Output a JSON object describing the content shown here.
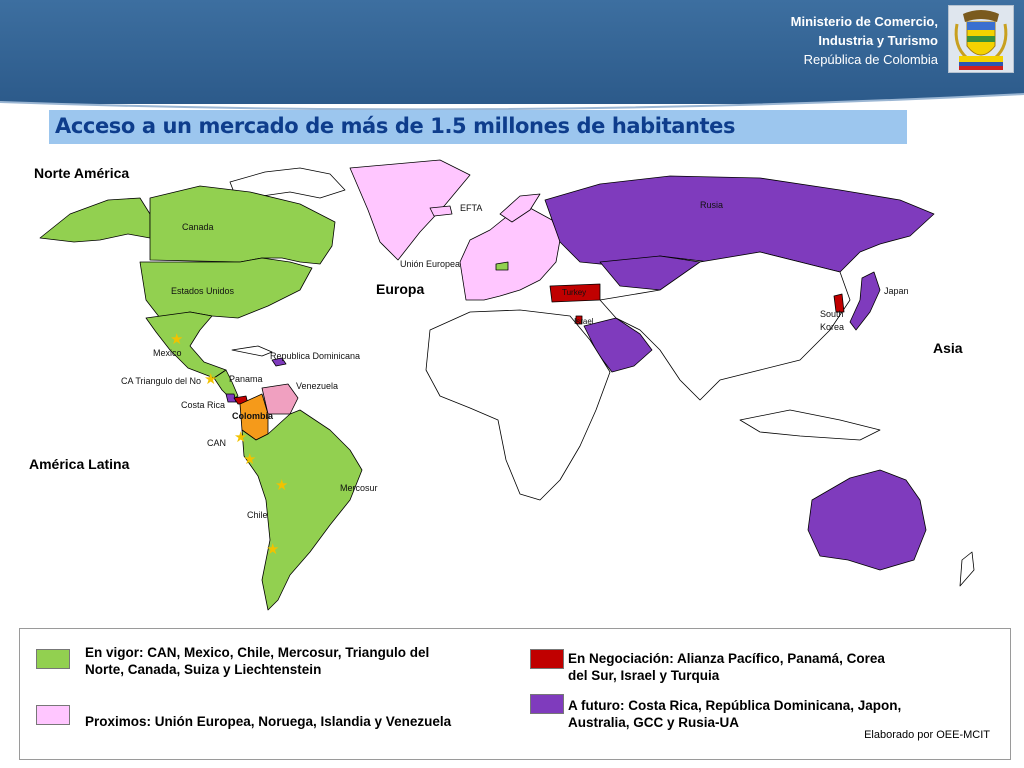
{
  "header": {
    "ministry_line1": "Ministerio de Comercio,",
    "ministry_line2": "Industria y Turismo",
    "ministry_line3": "República de Colombia",
    "crest_icon": "coat-of-arms-icon"
  },
  "title": "Acceso a un mercado de más de 1.5 millones de habitantes",
  "regions": {
    "north_america": "Norte América",
    "latin_america": "América Latina",
    "europe": "Europa",
    "asia": "Asia"
  },
  "map_labels": {
    "canada": "Canada",
    "usa": "Estados Unidos",
    "mexico": "Mexico",
    "dominican_republic": "Republica Dominicana",
    "ca_triangle": "CA Triangulo del No",
    "panama": "Panama",
    "venezuela": "Venezuela",
    "costa_rica": "Costa Rica",
    "colombia": "Colombia",
    "can": "CAN",
    "mercosur": "Mercosur",
    "chile": "Chile",
    "efta": "EFTA",
    "eu": "Unión Europea",
    "russia": "Rusia",
    "japan": "Japan",
    "south_korea_1": "South",
    "south_korea_2": "Korea",
    "turkey": "Turkey",
    "israel": "Israel"
  },
  "colors": {
    "in_force": "#92d050",
    "next": "#ffc6ff",
    "negotiation": "#c00000",
    "future": "#7f3bbd",
    "colombia": "#f59a1a",
    "venezuela": "#f0a0c0",
    "header": "#2c5a8a",
    "title_bg": "#9cc6ee",
    "title_text": "#0e3d8c"
  },
  "legend": {
    "in_force_1": "En vigor: CAN, Mexico, Chile, Mercosur, Triangulo del",
    "in_force_2": "Norte, Canada, Suiza y Liechtenstein",
    "next": "Proximos: Unión Europea, Noruega, Islandia y Venezuela",
    "negotiation_1": "En Negociación: Alianza Pacífico, Panamá, Corea",
    "negotiation_2": "del Sur, Israel y Turquia",
    "future_1": "A futuro: Costa Rica, República Dominicana, Japon,",
    "future_2": "Australia, GCC y Rusia-UA"
  },
  "credit": "Elaborado por OEE-MCIT",
  "star_icon": "star-icon"
}
